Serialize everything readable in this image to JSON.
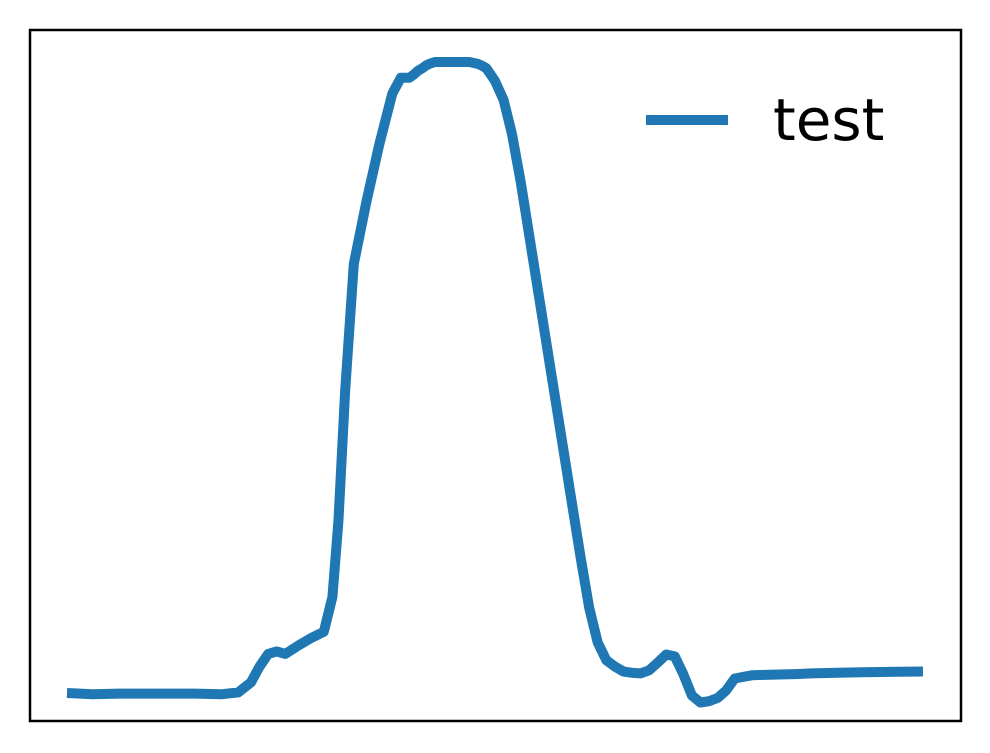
{
  "chart_data": {
    "type": "line",
    "title": "",
    "xlabel": "",
    "ylabel": "",
    "xlim": [
      0,
      100
    ],
    "ylim": [
      -0.05,
      1.0
    ],
    "grid": false,
    "axes_ticks": false,
    "legend": {
      "placement": "top-right",
      "entries": [
        "test"
      ]
    },
    "series": [
      {
        "name": "test",
        "color": "#1f77b4",
        "x": [
          0,
          3,
          6,
          10,
          15,
          18,
          20,
          21.5,
          22.5,
          23.5,
          24.5,
          25.5,
          27,
          28.5,
          30,
          31,
          31.7,
          32.5,
          33.5,
          35,
          36.5,
          38,
          39,
          40,
          40.5,
          41,
          41.5,
          42,
          42.5,
          43,
          44,
          45,
          46,
          47,
          48,
          48.5,
          49,
          49.5,
          50,
          51,
          52,
          53,
          55,
          57,
          59,
          60,
          61,
          62,
          63,
          64,
          65,
          66,
          67,
          68,
          69,
          70,
          71,
          72,
          73,
          74,
          75,
          76,
          77,
          78,
          80,
          82,
          85,
          87,
          90,
          93,
          100
        ],
        "y": [
          0.0,
          -0.002,
          -0.001,
          -0.001,
          -0.001,
          -0.002,
          0.001,
          0.017,
          0.042,
          0.062,
          0.066,
          0.062,
          0.075,
          0.087,
          0.097,
          0.152,
          0.272,
          0.48,
          0.68,
          0.78,
          0.87,
          0.95,
          0.975,
          0.975,
          0.98,
          0.986,
          0.99,
          0.995,
          0.998,
          1.0,
          1.0,
          1.0,
          1.0,
          1.0,
          0.997,
          0.994,
          0.99,
          0.98,
          0.97,
          0.94,
          0.885,
          0.81,
          0.64,
          0.47,
          0.3,
          0.215,
          0.135,
          0.08,
          0.052,
          0.042,
          0.034,
          0.032,
          0.031,
          0.036,
          0.048,
          0.061,
          0.058,
          0.03,
          -0.004,
          -0.015,
          -0.013,
          -0.008,
          0.004,
          0.023,
          0.028,
          0.029,
          0.03,
          0.031,
          0.032,
          0.033,
          0.034
        ]
      }
    ]
  }
}
